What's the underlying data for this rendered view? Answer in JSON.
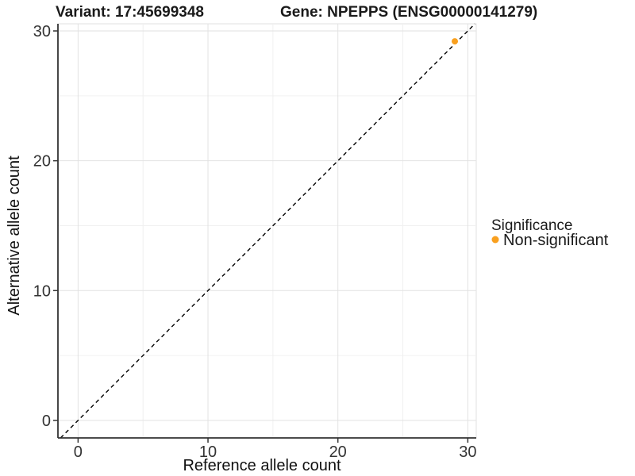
{
  "header": {
    "variant_title": "Variant: 17:45699348",
    "gene_title": "Gene: NPEPPS (ENSG00000141279)"
  },
  "chart_data": {
    "type": "scatter",
    "title_left": "Variant: 17:45699348",
    "title_right": "Gene: NPEPPS (ENSG00000141279)",
    "xlabel": "Reference allele count",
    "ylabel": "Alternative allele count",
    "xlim": [
      -1.55,
      30.65
    ],
    "ylim": [
      -1.35,
      30.55
    ],
    "xticks": [
      0,
      10,
      20,
      30
    ],
    "yticks": [
      0,
      10,
      20,
      30
    ],
    "grid": "major+minor",
    "abline": {
      "slope": 1,
      "intercept": 0,
      "style": "dashed",
      "color": "#000000"
    },
    "series": [
      {
        "name": "Non-significant",
        "color": "#F9A01F",
        "points": [
          [
            29,
            29.2
          ]
        ]
      }
    ],
    "legend": {
      "title": "Significance",
      "position": "right",
      "entries": [
        {
          "label": "Non-significant",
          "color": "#F9A01F"
        }
      ]
    }
  },
  "colors": {
    "accent_orange": "#F9A01F",
    "axis_line": "#333333",
    "grid_major": "#e2e2e2",
    "grid_minor": "#f0f0f0",
    "panel_border": "#e2e2e2",
    "dashed_line": "#000000",
    "tick_text": "#333333"
  }
}
